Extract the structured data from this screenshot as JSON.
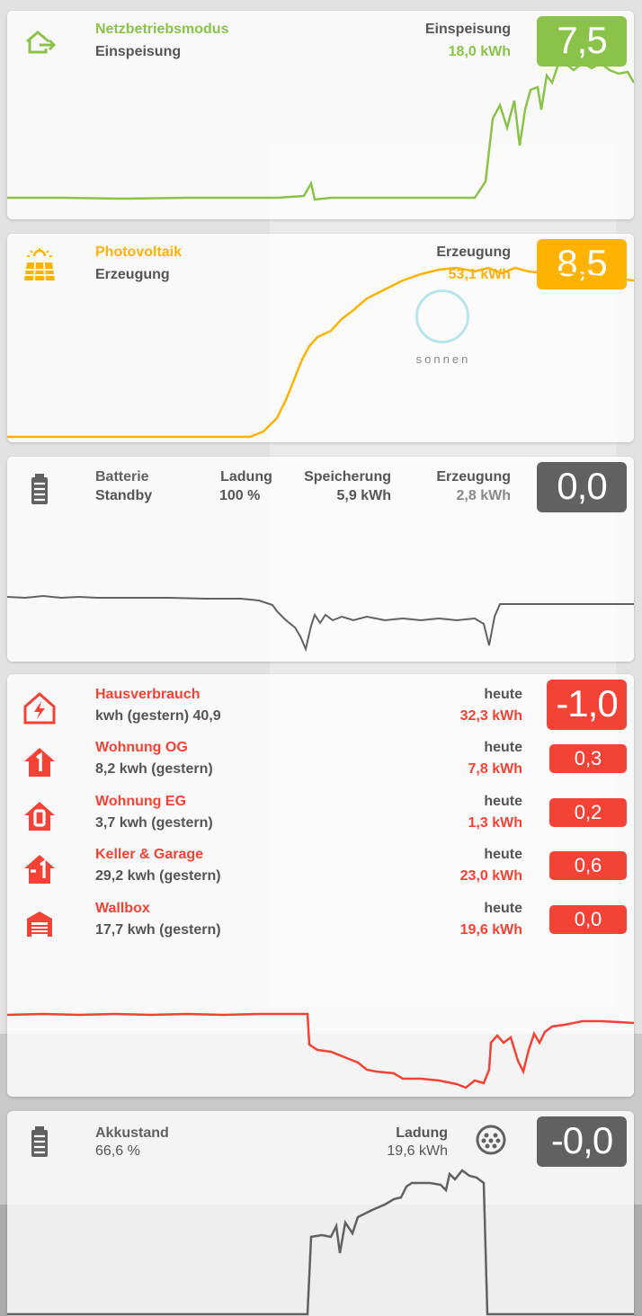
{
  "colors": {
    "grid_green": "#8bc34a",
    "solar_orange": "#ffb300",
    "battery_gray": "#616161",
    "consumption_red": "#f44336"
  },
  "grid": {
    "icon": "export-house-icon",
    "title": "Netzbetriebsmodus",
    "mode": "Einspeisung",
    "right_label": "Einspeisung",
    "right_value": "18,0 kWh",
    "badge": "7,5"
  },
  "pv": {
    "icon": "solar-panel-icon",
    "title": "Photovoltaik",
    "mode": "Erzeugung",
    "right_label": "Erzeugung",
    "right_value": "53,1 kWh",
    "badge": "8,5",
    "logo_text": "sonnen"
  },
  "battery": {
    "icon": "battery-icon",
    "title": "Batterie",
    "status": "Standby",
    "charge_label": "Ladung",
    "charge_value": "100 %",
    "storage_label": "Speicherung",
    "storage_value": "5,9 kWh",
    "production_label": "Erzeugung",
    "production_value": "2,8 kWh",
    "badge": "0,0"
  },
  "consumption": {
    "rows": [
      {
        "icon": "house-bolt-icon",
        "title": "Hausverbrauch",
        "sub": "kwh (gestern) 40,9",
        "today_label": "heute",
        "today_value": "32,3 kWh",
        "badge": "-1,0"
      },
      {
        "icon": "floor-1-icon",
        "title": "Wohnung OG",
        "sub": "8,2 kwh (gestern)",
        "today_label": "heute",
        "today_value": "7,8 kWh",
        "badge": "0,3"
      },
      {
        "icon": "floor-0-icon",
        "title": "Wohnung EG",
        "sub": "3,7 kwh (gestern)",
        "today_label": "heute",
        "today_value": "1,3 kWh",
        "badge": "0,2"
      },
      {
        "icon": "floor-minus1-icon",
        "title": "Keller & Garage",
        "sub": "29,2 kwh (gestern)",
        "today_label": "heute",
        "today_value": "23,0 kWh",
        "badge": "0,6"
      },
      {
        "icon": "garage-icon",
        "title": "Wallbox",
        "sub": "17,7 kwh (gestern)",
        "today_label": "heute",
        "today_value": "19,6 kWh",
        "badge": "0,0"
      }
    ]
  },
  "ev": {
    "icon": "battery-icon",
    "title": "Akkustand",
    "value": "66,6 %",
    "charge_label": "Ladung",
    "charge_value": "19,6 kWh",
    "connector_icon": "ev-connector-icon",
    "badge": "-0,0"
  }
}
